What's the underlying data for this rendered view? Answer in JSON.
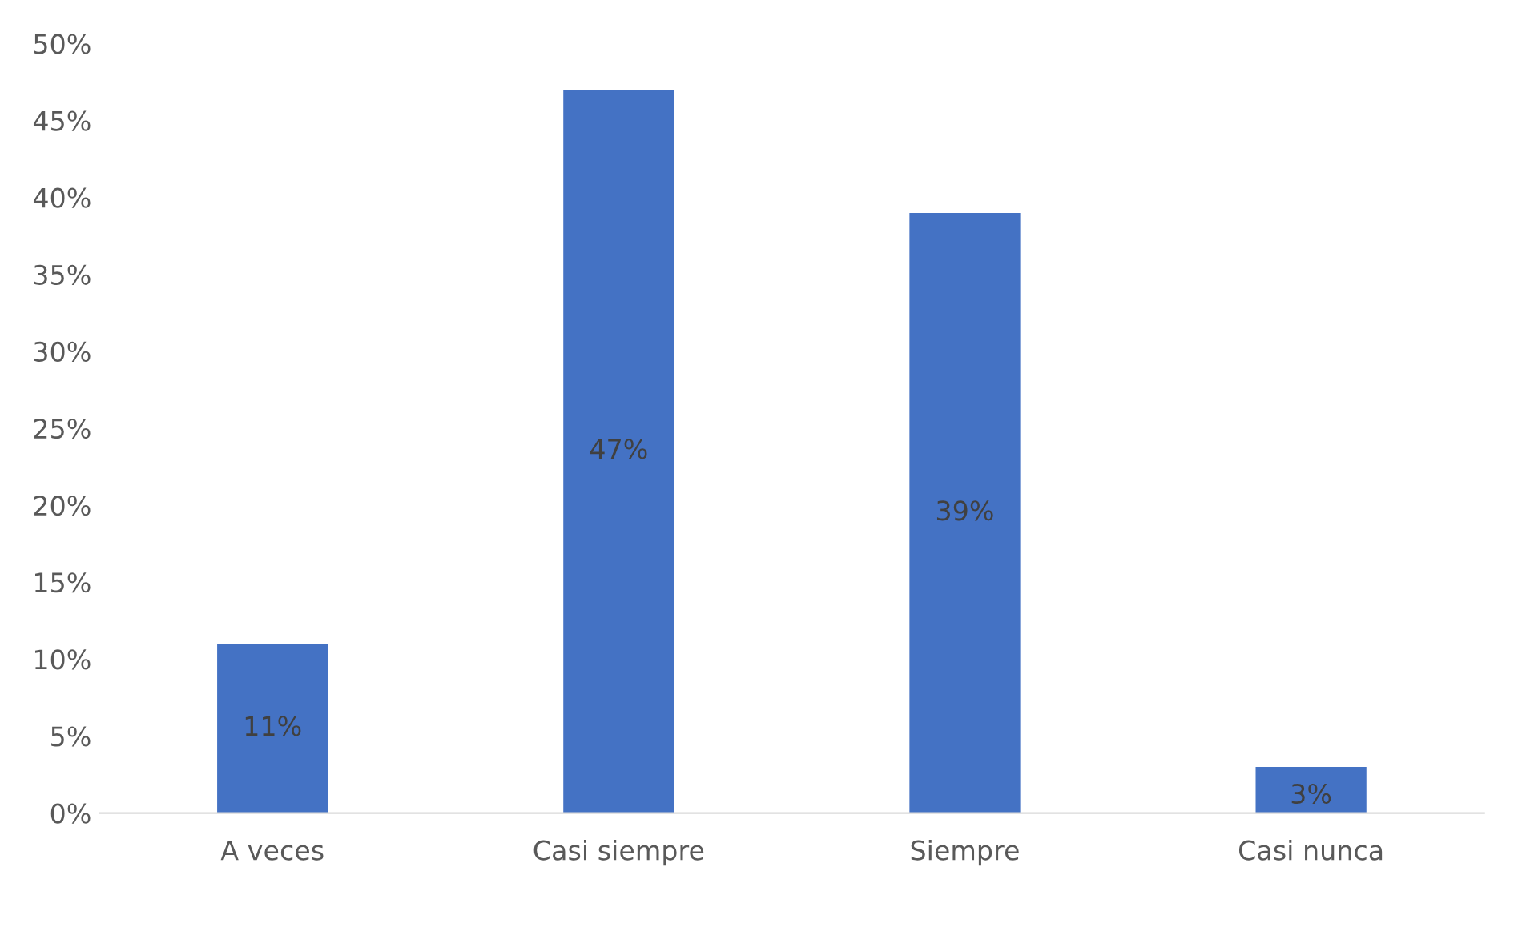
{
  "chart_data": {
    "type": "bar",
    "categories": [
      "A veces",
      "Casi siempre",
      "Siempre",
      "Casi nunca"
    ],
    "values": [
      11,
      47,
      39,
      3
    ],
    "color": "#4472c4",
    "ylim": [
      0,
      50
    ],
    "yticks": [
      {
        "value": 0,
        "label": "0%"
      },
      {
        "value": 5,
        "label": "5%"
      },
      {
        "value": 10,
        "label": "10%"
      },
      {
        "value": 15,
        "label": "15%"
      },
      {
        "value": 20,
        "label": "20%"
      },
      {
        "value": 25,
        "label": "25%"
      },
      {
        "value": 30,
        "label": "30%"
      },
      {
        "value": 35,
        "label": "35%"
      },
      {
        "value": 40,
        "label": "40%"
      },
      {
        "value": 45,
        "label": "45%"
      },
      {
        "value": 50,
        "label": "50%"
      }
    ],
    "value_labels": [
      "11%",
      "47%",
      "39%",
      "3%"
    ],
    "grid": false,
    "legend": false
  }
}
